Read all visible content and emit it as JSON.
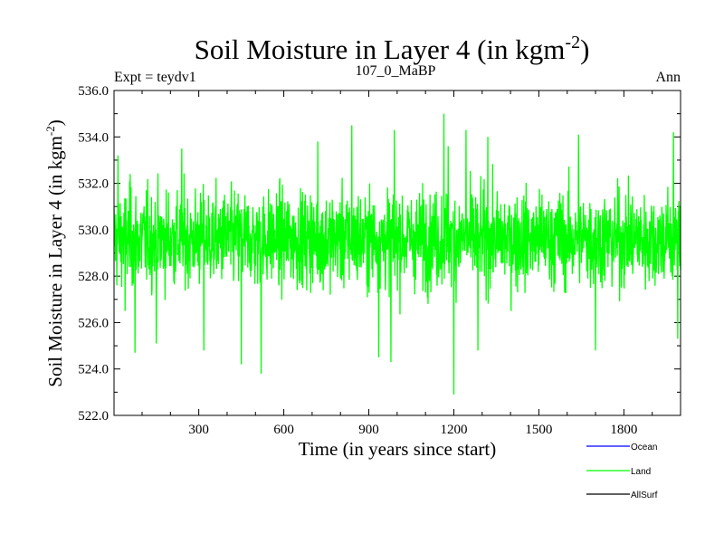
{
  "chart_data": {
    "type": "line",
    "title_main": "Soil Moisture in Layer 4 (in kgm",
    "title_sup": "-2",
    "title_end": ")",
    "left_label": "Expt = teydv1",
    "center_label": "107_0_MaBP",
    "right_label": "Ann",
    "xlabel": "Time (in years since start)",
    "ylabel_main": "Soil Moisture in Layer 4 (in kgm",
    "ylabel_sup": "-2",
    "ylabel_end": ")",
    "xlim": [
      1,
      2000
    ],
    "ylim": [
      522,
      536
    ],
    "xticks": [
      300,
      600,
      900,
      1200,
      1500,
      1800
    ],
    "xtick_labels": [
      "300",
      "600",
      "900",
      "1200",
      "1500",
      "1800"
    ],
    "yticks": [
      522,
      524,
      526,
      528,
      530,
      532,
      534,
      536
    ],
    "ytick_labels": [
      "522.0",
      "524.0",
      "526.0",
      "528.0",
      "530.0",
      "532.0",
      "534.0",
      "536.0"
    ],
    "series": [
      {
        "name": "Ocean",
        "color": "#0000ff",
        "values": []
      },
      {
        "name": "Land",
        "color": "#00ff00",
        "mean": 529.6,
        "min": 522.9,
        "max": 535.0,
        "n_years": 2000,
        "spikes": [
          [
            15,
            533.2
          ],
          [
            40,
            526.5
          ],
          [
            58,
            532.4
          ],
          [
            75,
            524.7
          ],
          [
            150,
            525.1
          ],
          [
            240,
            533.5
          ],
          [
            318,
            524.8
          ],
          [
            450,
            524.2
          ],
          [
            520,
            523.8
          ],
          [
            720,
            533.8
          ],
          [
            840,
            534.5
          ],
          [
            935,
            524.5
          ],
          [
            978,
            524.3
          ],
          [
            990,
            534.3
          ],
          [
            1165,
            535.0
          ],
          [
            1180,
            533.6
          ],
          [
            1200,
            522.9
          ],
          [
            1243,
            534.3
          ],
          [
            1285,
            524.8
          ],
          [
            1320,
            534.0
          ],
          [
            1640,
            534.1
          ],
          [
            1700,
            524.8
          ],
          [
            1975,
            534.2
          ],
          [
            1990,
            525.3
          ]
        ]
      },
      {
        "name": "AllSurf",
        "color": "#000000",
        "values": []
      }
    ]
  }
}
